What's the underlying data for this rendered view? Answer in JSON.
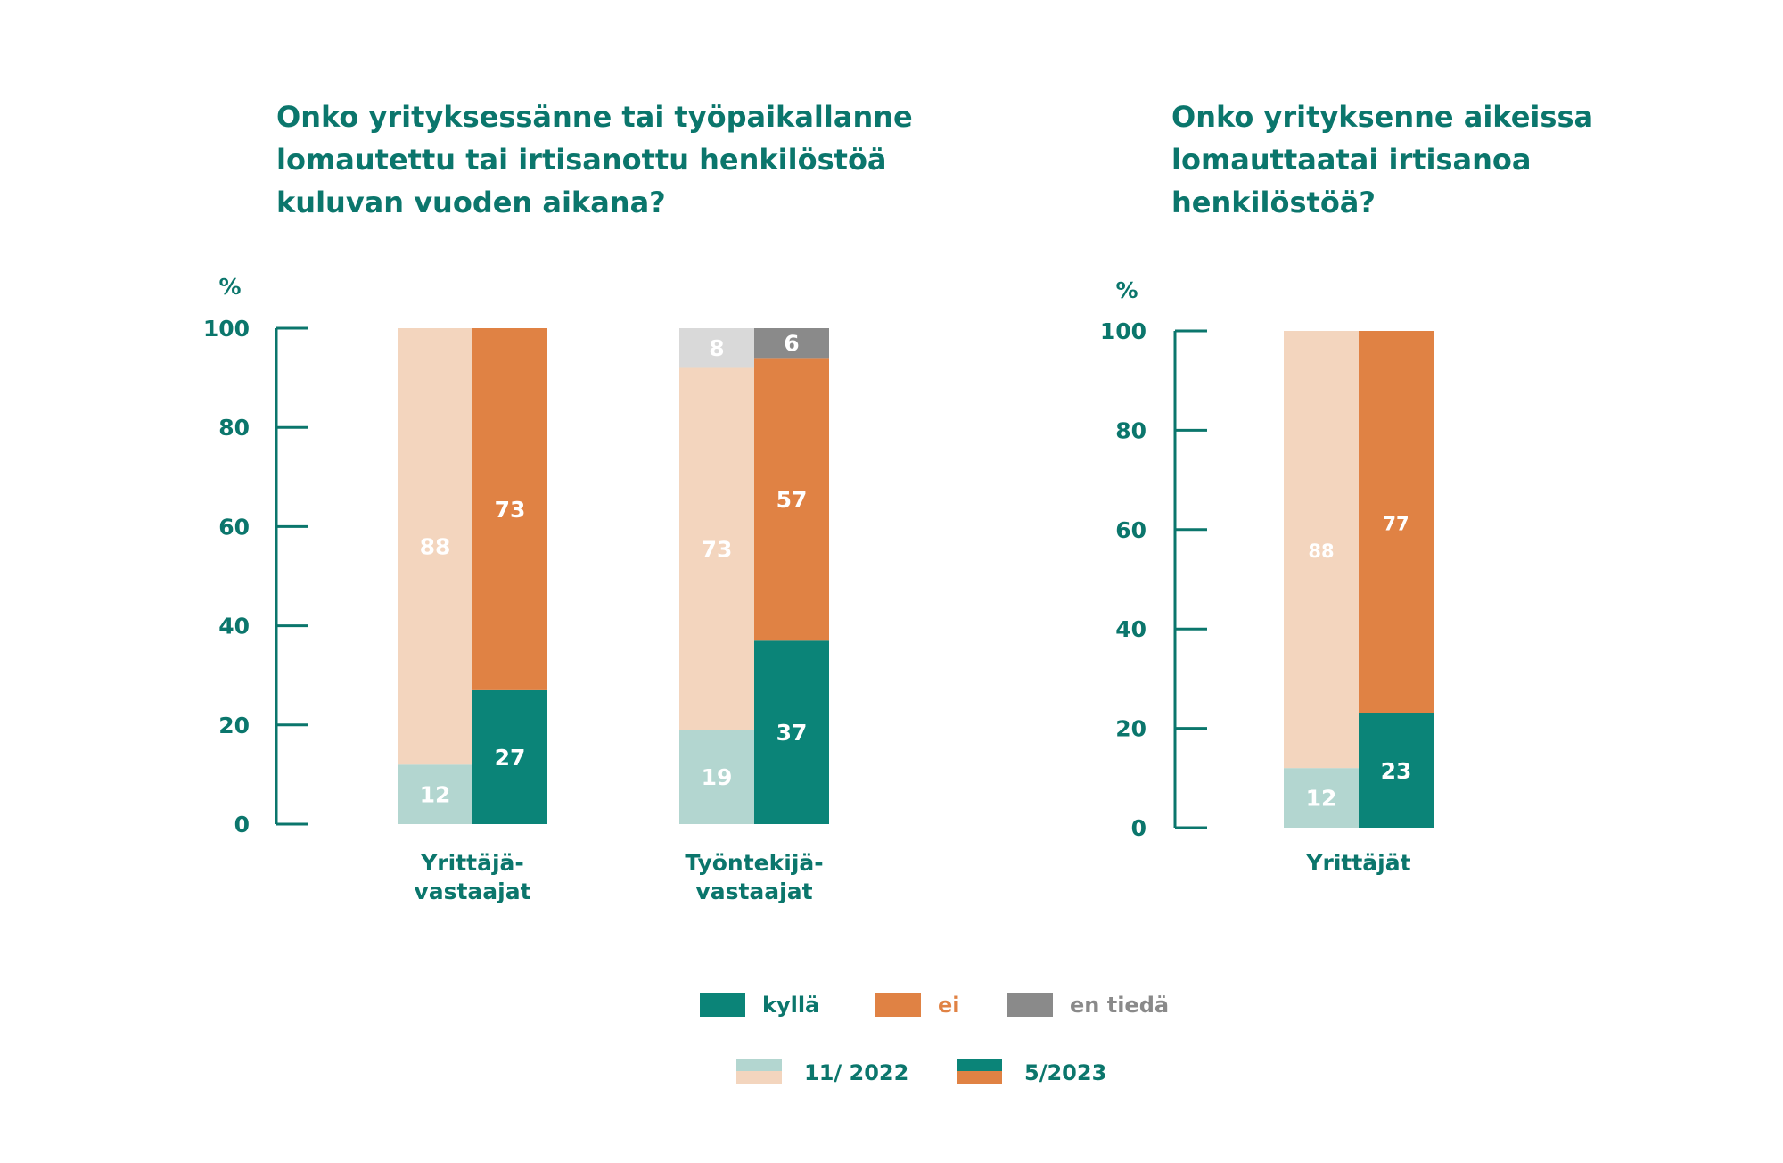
{
  "colors": {
    "kylla_2022": "#b3d6d0",
    "ei_2022": "#f3d5be",
    "entieda_2022": "#d9d9d9",
    "kylla_2023": "#0b8478",
    "ei_2023": "#e08244",
    "entieda_2023": "#8a8a8a",
    "axis": "#0b766c",
    "title": "#0b766c",
    "label_light": "#ffffff",
    "legend_kylla_text": "#0b766c",
    "legend_ei_text": "#e08244",
    "legend_entieda_text": "#8a8a8a"
  },
  "legend": {
    "kylla": "kyllä",
    "ei": "ei",
    "en_tieda": "en tiedä",
    "period_2022": "11/ 2022",
    "period_2023": "5/2023"
  },
  "chart_data": [
    {
      "type": "bar",
      "stacked": true,
      "title": "Onko yrityksessänne tai työpaikallanne\nlomautettu tai irtisanottu henkilöstöä\nkuluvan vuoden aikana?",
      "ylabel": "%",
      "ylim": [
        0,
        100
      ],
      "yticks": [
        0,
        20,
        40,
        60,
        80,
        100
      ],
      "groups": [
        {
          "label": "Yrittäjä-\nvastaajat",
          "bars": [
            {
              "period": "11/ 2022",
              "segments": [
                {
                  "category": "kyllä",
                  "value": 12,
                  "label": "12"
                },
                {
                  "category": "ei",
                  "value": 88,
                  "label": "88"
                }
              ]
            },
            {
              "period": "5/2023",
              "segments": [
                {
                  "category": "kyllä",
                  "value": 27,
                  "label": "27"
                },
                {
                  "category": "ei",
                  "value": 73,
                  "label": "73"
                }
              ]
            }
          ]
        },
        {
          "label": "Työntekijä-\nvastaajat",
          "bars": [
            {
              "period": "11/ 2022",
              "segments": [
                {
                  "category": "kyllä",
                  "value": 19,
                  "label": "19"
                },
                {
                  "category": "ei",
                  "value": 73,
                  "label": "73"
                },
                {
                  "category": "en tiedä",
                  "value": 8,
                  "label": "8"
                }
              ]
            },
            {
              "period": "5/2023",
              "segments": [
                {
                  "category": "kyllä",
                  "value": 37,
                  "label": "37"
                },
                {
                  "category": "ei",
                  "value": 57,
                  "label": "57"
                },
                {
                  "category": "en tiedä",
                  "value": 6,
                  "label": "6"
                }
              ]
            }
          ]
        }
      ]
    },
    {
      "type": "bar",
      "stacked": true,
      "title": "Onko yrityksenne aikeissa\nlomauttaatai irtisanoa\nhenkilöstöä?",
      "ylabel": "%",
      "ylim": [
        0,
        100
      ],
      "yticks": [
        0,
        20,
        40,
        60,
        80,
        100
      ],
      "groups": [
        {
          "label": "Yrittäjät",
          "bars": [
            {
              "period": "11/ 2022",
              "segments": [
                {
                  "category": "kyllä",
                  "value": 12,
                  "label": "12"
                },
                {
                  "category": "ei",
                  "value": 88,
                  "label": "88"
                }
              ]
            },
            {
              "period": "5/2023",
              "segments": [
                {
                  "category": "kyllä",
                  "value": 23,
                  "label": "23"
                },
                {
                  "category": "ei",
                  "value": 77,
                  "label": "77"
                }
              ]
            }
          ]
        }
      ]
    }
  ]
}
